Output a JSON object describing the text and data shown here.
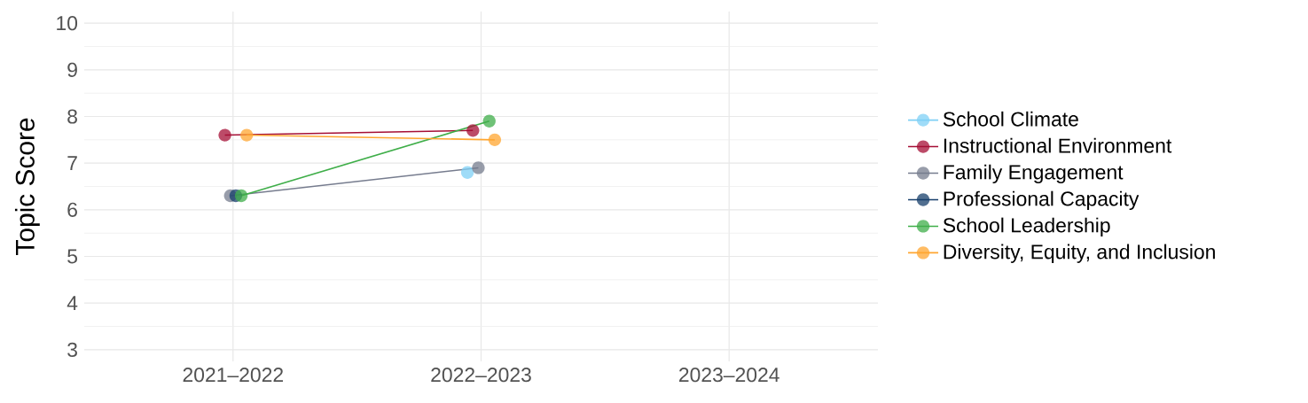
{
  "chart_data": {
    "type": "line",
    "ylabel": "Topic Score",
    "categories": [
      "2021–2022",
      "2022–2023",
      "2023–2024"
    ],
    "series": [
      {
        "name": "School Climate",
        "color": "#7fd0f5",
        "values": [
          null,
          6.8,
          null
        ]
      },
      {
        "name": "Instructional Environment",
        "color": "#a50f35",
        "values": [
          7.6,
          7.7,
          null
        ]
      },
      {
        "name": "Family Engagement",
        "color": "#767c8e",
        "values": [
          6.3,
          6.9,
          null
        ]
      },
      {
        "name": "Professional Capacity",
        "color": "#173f6b",
        "values": [
          6.3,
          null,
          null
        ]
      },
      {
        "name": "School Leadership",
        "color": "#3fae49",
        "values": [
          6.3,
          7.9,
          null
        ]
      },
      {
        "name": "Diversity, Equity, and Inclusion",
        "color": "#ffa630",
        "values": [
          7.6,
          7.5,
          null
        ]
      }
    ],
    "ylim": [
      2.75,
      10.25
    ],
    "yticks": [
      3,
      4,
      5,
      6,
      7,
      8,
      9,
      10
    ],
    "grid": true,
    "legend": "right",
    "marker": "circle",
    "line_style": "solid"
  }
}
